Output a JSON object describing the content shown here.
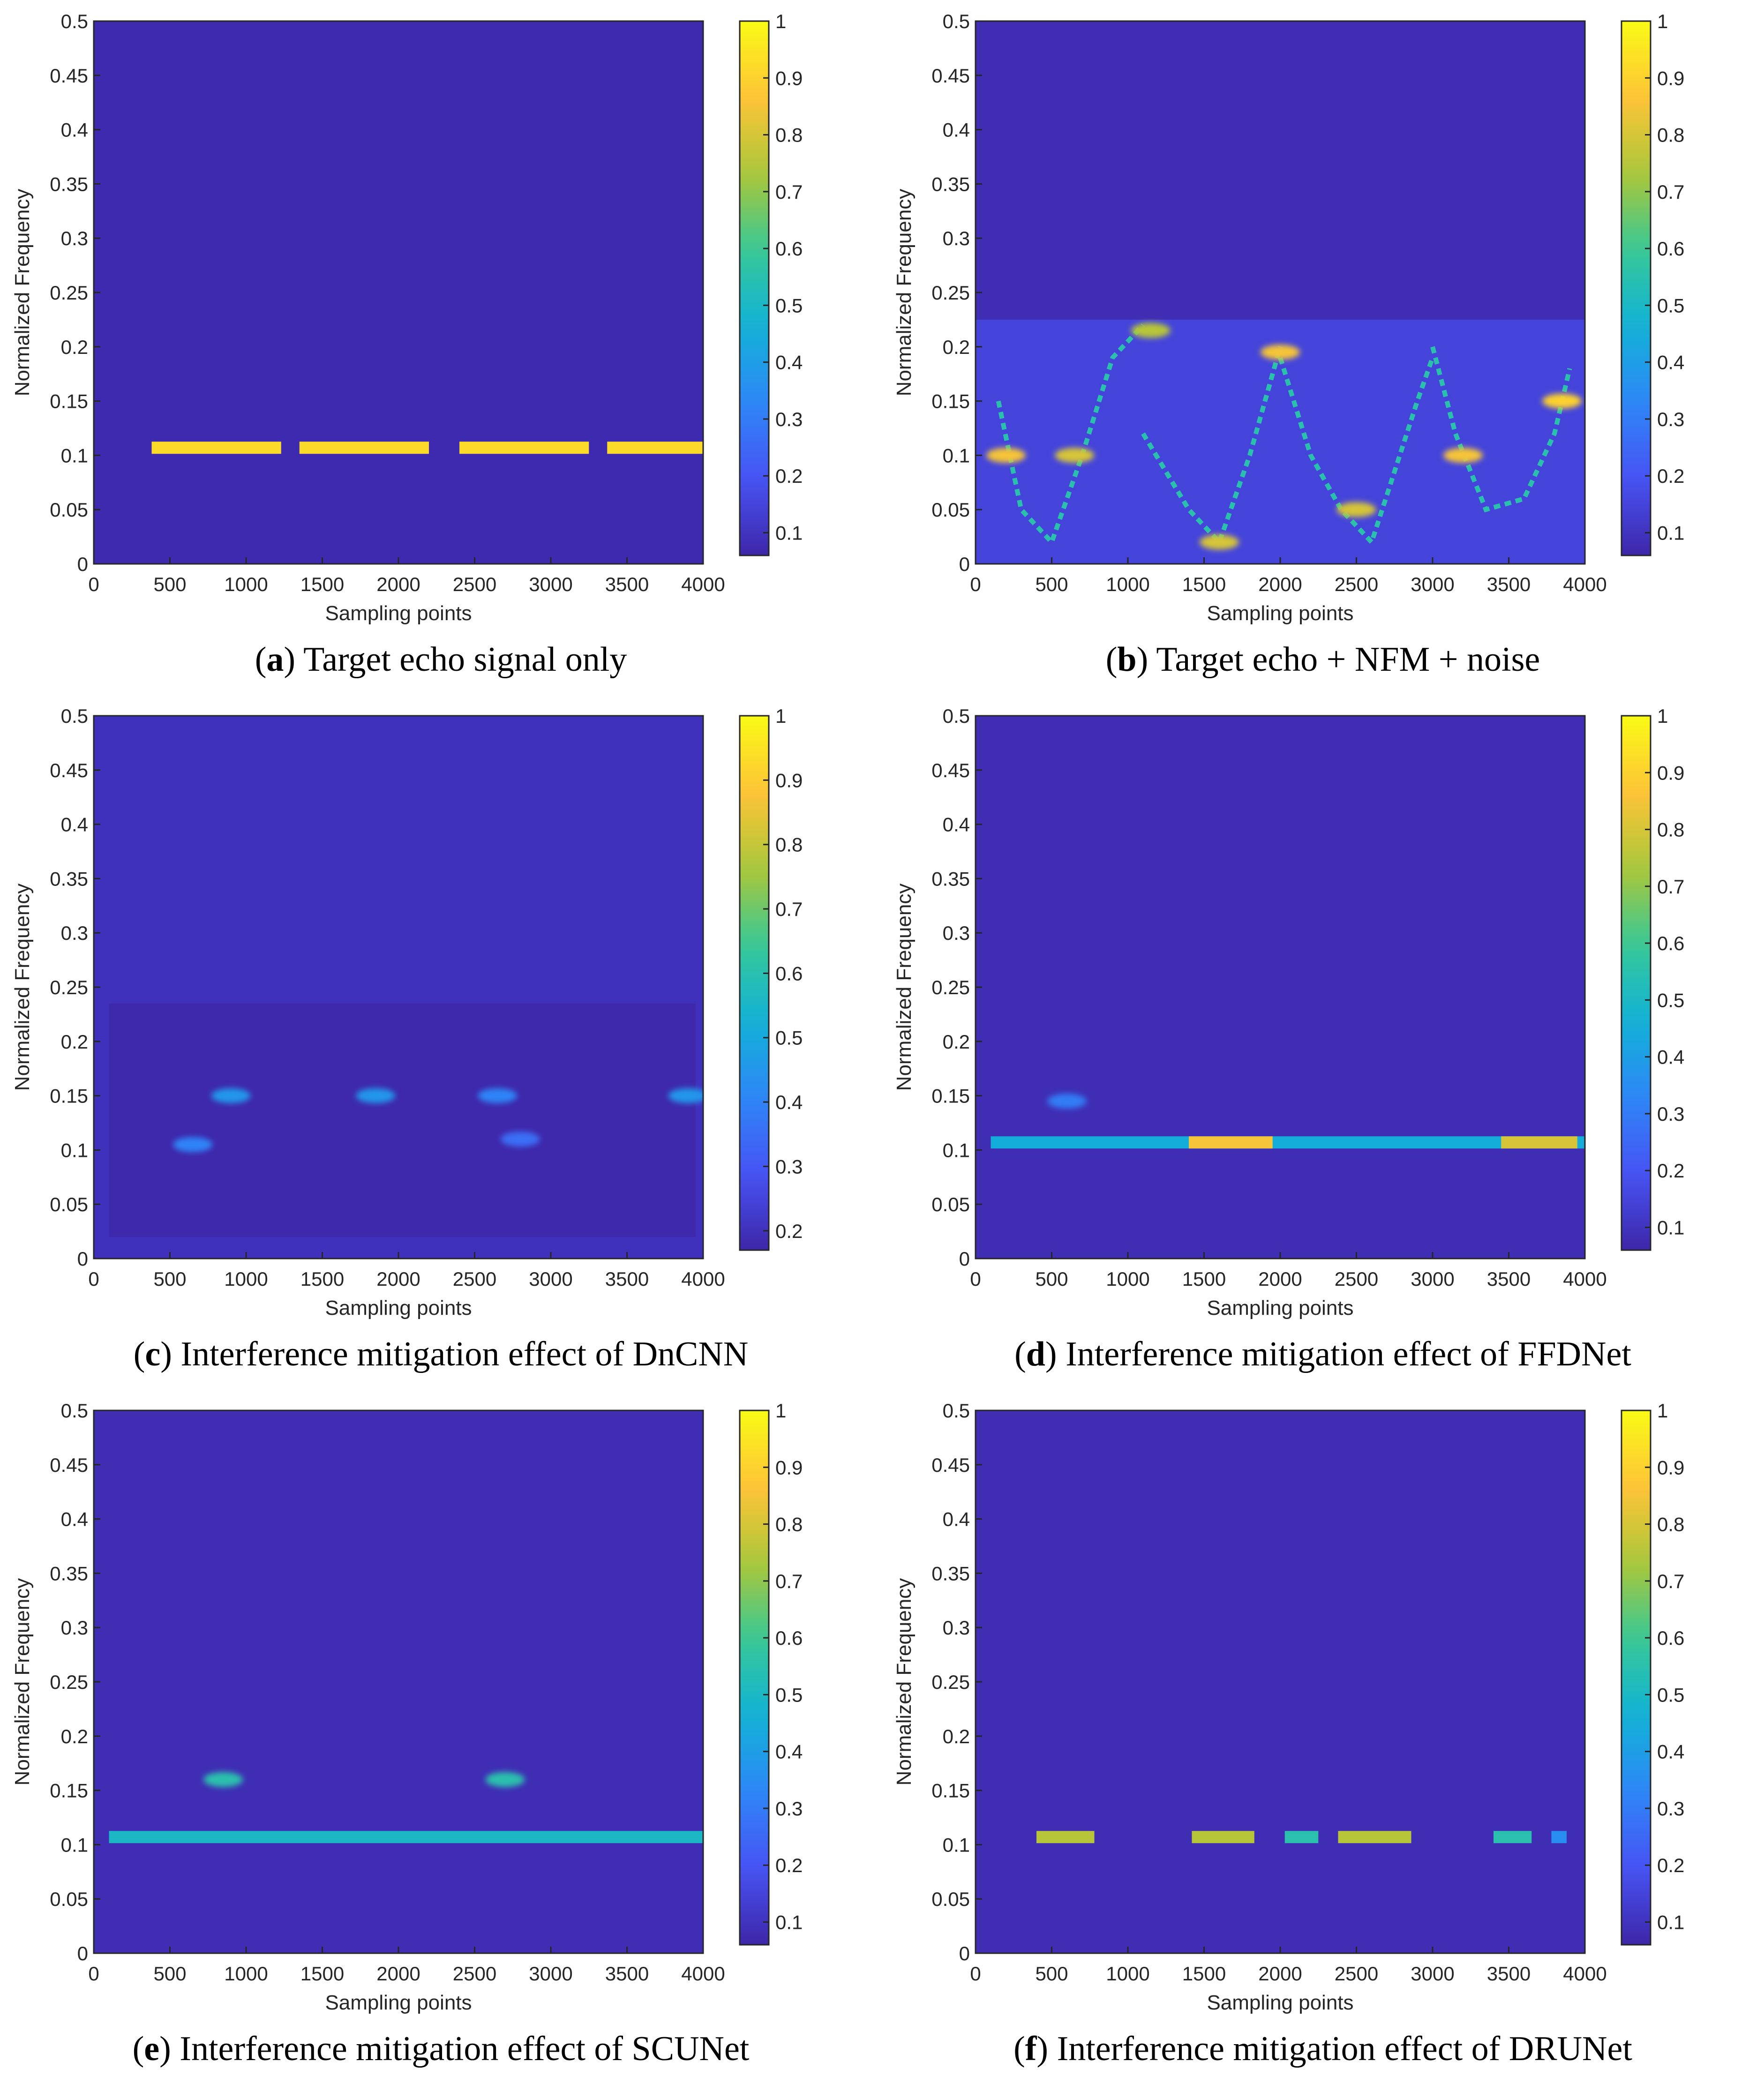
{
  "colormap": "parula",
  "chart_data": [
    {
      "type": "heatmap",
      "panel_letter": "a",
      "caption_text": "Target echo signal only",
      "xlabel": "Sampling points",
      "ylabel": "Normalized Frequency",
      "xlim": [
        0,
        4000
      ],
      "ylim": [
        0,
        0.5
      ],
      "xticks": [
        "0",
        "500",
        "1000",
        "1500",
        "2000",
        "2500",
        "3000",
        "3500",
        "4000"
      ],
      "yticks": [
        "0",
        "0.05",
        "0.1",
        "0.15",
        "0.2",
        "0.25",
        "0.3",
        "0.35",
        "0.4",
        "0.45",
        "0.5"
      ],
      "colorbar_range": [
        0.06,
        1
      ],
      "colorbar_ticks": [
        "0.1",
        "0.2",
        "0.3",
        "0.4",
        "0.5",
        "0.6",
        "0.7",
        "0.8",
        "0.9",
        "1"
      ],
      "background_value": 0.07,
      "features": [
        {
          "kind": "band",
          "x": [
            380,
            1230
          ],
          "y": 0.107,
          "value": 0.92
        },
        {
          "kind": "band",
          "x": [
            1350,
            2200
          ],
          "y": 0.107,
          "value": 0.92
        },
        {
          "kind": "band",
          "x": [
            2400,
            3250
          ],
          "y": 0.107,
          "value": 0.92
        },
        {
          "kind": "band",
          "x": [
            3370,
            4000
          ],
          "y": 0.107,
          "value": 0.92
        }
      ]
    },
    {
      "type": "heatmap",
      "panel_letter": "b",
      "caption_text": "Target echo + NFM + noise",
      "xlabel": "Sampling points",
      "ylabel": "Normalized Frequency",
      "xlim": [
        0,
        4000
      ],
      "ylim": [
        0,
        0.5
      ],
      "xticks": [
        "0",
        "500",
        "1000",
        "1500",
        "2000",
        "2500",
        "3000",
        "3500",
        "4000"
      ],
      "yticks": [
        "0",
        "0.05",
        "0.1",
        "0.15",
        "0.2",
        "0.25",
        "0.3",
        "0.35",
        "0.4",
        "0.45",
        "0.5"
      ],
      "colorbar_range": [
        0.06,
        1
      ],
      "colorbar_ticks": [
        "0.1",
        "0.2",
        "0.3",
        "0.4",
        "0.5",
        "0.6",
        "0.7",
        "0.8",
        "0.9",
        "1"
      ],
      "background_value": 0.08,
      "features": [
        {
          "kind": "region",
          "x": [
            0,
            4000
          ],
          "y": [
            0,
            0.225
          ],
          "value": 0.15
        },
        {
          "kind": "trace",
          "points": [
            [
              150,
              0.15
            ],
            [
              300,
              0.05
            ],
            [
              500,
              0.02
            ],
            [
              700,
              0.1
            ],
            [
              900,
              0.19
            ],
            [
              1100,
              0.22
            ]
          ],
          "value": 0.55
        },
        {
          "kind": "trace",
          "points": [
            [
              1100,
              0.12
            ],
            [
              1400,
              0.05
            ],
            [
              1600,
              0.02
            ],
            [
              1800,
              0.1
            ],
            [
              2000,
              0.2
            ]
          ],
          "value": 0.55
        },
        {
          "kind": "trace",
          "points": [
            [
              2000,
              0.19
            ],
            [
              2200,
              0.1
            ],
            [
              2400,
              0.05
            ],
            [
              2600,
              0.02
            ],
            [
              2900,
              0.15
            ],
            [
              3000,
              0.19
            ]
          ],
          "value": 0.55
        },
        {
          "kind": "trace",
          "points": [
            [
              3000,
              0.2
            ],
            [
              3150,
              0.12
            ],
            [
              3350,
              0.05
            ],
            [
              3600,
              0.06
            ],
            [
              3800,
              0.12
            ],
            [
              3900,
              0.18
            ]
          ],
          "value": 0.55
        },
        {
          "kind": "spot",
          "x": 200,
          "y": 0.1,
          "value": 0.85
        },
        {
          "kind": "spot",
          "x": 650,
          "y": 0.1,
          "value": 0.8
        },
        {
          "kind": "spot",
          "x": 1150,
          "y": 0.215,
          "value": 0.75
        },
        {
          "kind": "spot",
          "x": 1600,
          "y": 0.02,
          "value": 0.8
        },
        {
          "kind": "spot",
          "x": 2000,
          "y": 0.195,
          "value": 0.85
        },
        {
          "kind": "spot",
          "x": 2500,
          "y": 0.05,
          "value": 0.8
        },
        {
          "kind": "spot",
          "x": 3200,
          "y": 0.1,
          "value": 0.85
        },
        {
          "kind": "spot",
          "x": 3850,
          "y": 0.15,
          "value": 0.9
        }
      ]
    },
    {
      "type": "heatmap",
      "panel_letter": "c",
      "caption_text": "Interference mitigation effect of DnCNN",
      "xlabel": "Sampling points",
      "ylabel": "Normalized Frequency",
      "xlim": [
        0,
        4000
      ],
      "ylim": [
        0,
        0.5
      ],
      "xticks": [
        "0",
        "500",
        "1000",
        "1500",
        "2000",
        "2500",
        "3000",
        "3500",
        "4000"
      ],
      "yticks": [
        "0",
        "0.05",
        "0.1",
        "0.15",
        "0.2",
        "0.25",
        "0.3",
        "0.35",
        "0.4",
        "0.45",
        "0.5"
      ],
      "colorbar_range": [
        0.17,
        1
      ],
      "colorbar_ticks": [
        "0.2",
        "0.3",
        "0.4",
        "0.5",
        "0.6",
        "0.7",
        "0.8",
        "0.9",
        "1"
      ],
      "background_value": 0.2,
      "features": [
        {
          "kind": "region",
          "x": [
            100,
            3950
          ],
          "y": [
            0.02,
            0.235
          ],
          "value": 0.175
        },
        {
          "kind": "spot",
          "x": 900,
          "y": 0.15,
          "value": 0.45
        },
        {
          "kind": "spot",
          "x": 1850,
          "y": 0.15,
          "value": 0.45
        },
        {
          "kind": "spot",
          "x": 2650,
          "y": 0.15,
          "value": 0.4
        },
        {
          "kind": "spot",
          "x": 3900,
          "y": 0.15,
          "value": 0.45
        },
        {
          "kind": "spot",
          "x": 650,
          "y": 0.105,
          "value": 0.4
        },
        {
          "kind": "spot",
          "x": 2800,
          "y": 0.11,
          "value": 0.35
        }
      ]
    },
    {
      "type": "heatmap",
      "panel_letter": "d",
      "caption_text": "Interference mitigation effect of FFDNet",
      "xlabel": "Sampling points",
      "ylabel": "Normalized Frequency",
      "xlim": [
        0,
        4000
      ],
      "ylim": [
        0,
        0.5
      ],
      "xticks": [
        "0",
        "500",
        "1000",
        "1500",
        "2000",
        "2500",
        "3000",
        "3500",
        "4000"
      ],
      "yticks": [
        "0",
        "0.05",
        "0.1",
        "0.15",
        "0.2",
        "0.25",
        "0.3",
        "0.35",
        "0.4",
        "0.45",
        "0.5"
      ],
      "colorbar_range": [
        0.06,
        1
      ],
      "colorbar_ticks": [
        "0.1",
        "0.2",
        "0.3",
        "0.4",
        "0.5",
        "0.6",
        "0.7",
        "0.8",
        "0.9",
        "1"
      ],
      "background_value": 0.08,
      "features": [
        {
          "kind": "band",
          "x": [
            100,
            4000
          ],
          "y": 0.107,
          "value": 0.45
        },
        {
          "kind": "band",
          "x": [
            1400,
            1950
          ],
          "y": 0.107,
          "value": 0.85
        },
        {
          "kind": "band",
          "x": [
            3450,
            3950
          ],
          "y": 0.107,
          "value": 0.8
        },
        {
          "kind": "spot",
          "x": 600,
          "y": 0.145,
          "value": 0.3
        }
      ]
    },
    {
      "type": "heatmap",
      "panel_letter": "e",
      "caption_text": "Interference mitigation effect of SCUNet",
      "xlabel": "Sampling points",
      "ylabel": "Normalized Frequency",
      "xlim": [
        0,
        4000
      ],
      "ylim": [
        0,
        0.5
      ],
      "xticks": [
        "0",
        "500",
        "1000",
        "1500",
        "2000",
        "2500",
        "3000",
        "3500",
        "4000"
      ],
      "yticks": [
        "0",
        "0.05",
        "0.1",
        "0.15",
        "0.2",
        "0.25",
        "0.3",
        "0.35",
        "0.4",
        "0.45",
        "0.5"
      ],
      "colorbar_range": [
        0.06,
        1
      ],
      "colorbar_ticks": [
        "0.1",
        "0.2",
        "0.3",
        "0.4",
        "0.5",
        "0.6",
        "0.7",
        "0.8",
        "0.9",
        "1"
      ],
      "background_value": 0.08,
      "features": [
        {
          "kind": "band",
          "x": [
            100,
            4000
          ],
          "y": 0.107,
          "value": 0.5
        },
        {
          "kind": "spot",
          "x": 850,
          "y": 0.16,
          "value": 0.55
        },
        {
          "kind": "spot",
          "x": 2700,
          "y": 0.16,
          "value": 0.55
        }
      ]
    },
    {
      "type": "heatmap",
      "panel_letter": "f",
      "caption_text": "Interference mitigation effect of DRUNet",
      "xlabel": "Sampling points",
      "ylabel": "Normalized Frequency",
      "xlim": [
        0,
        4000
      ],
      "ylim": [
        0,
        0.5
      ],
      "xticks": [
        "0",
        "500",
        "1000",
        "1500",
        "2000",
        "2500",
        "3000",
        "3500",
        "4000"
      ],
      "yticks": [
        "0",
        "0.05",
        "0.1",
        "0.15",
        "0.2",
        "0.25",
        "0.3",
        "0.35",
        "0.4",
        "0.45",
        "0.5"
      ],
      "colorbar_range": [
        0.06,
        1
      ],
      "colorbar_ticks": [
        "0.1",
        "0.2",
        "0.3",
        "0.4",
        "0.5",
        "0.6",
        "0.7",
        "0.8",
        "0.9",
        "1"
      ],
      "background_value": 0.08,
      "features": [
        {
          "kind": "band",
          "x": [
            400,
            780
          ],
          "y": 0.107,
          "value": 0.75
        },
        {
          "kind": "band",
          "x": [
            1420,
            1830
          ],
          "y": 0.107,
          "value": 0.75
        },
        {
          "kind": "band",
          "x": [
            2030,
            2250
          ],
          "y": 0.107,
          "value": 0.55
        },
        {
          "kind": "band",
          "x": [
            2380,
            2860
          ],
          "y": 0.107,
          "value": 0.75
        },
        {
          "kind": "band",
          "x": [
            3400,
            3650
          ],
          "y": 0.107,
          "value": 0.55
        },
        {
          "kind": "band",
          "x": [
            3780,
            3880
          ],
          "y": 0.107,
          "value": 0.35
        }
      ]
    }
  ]
}
